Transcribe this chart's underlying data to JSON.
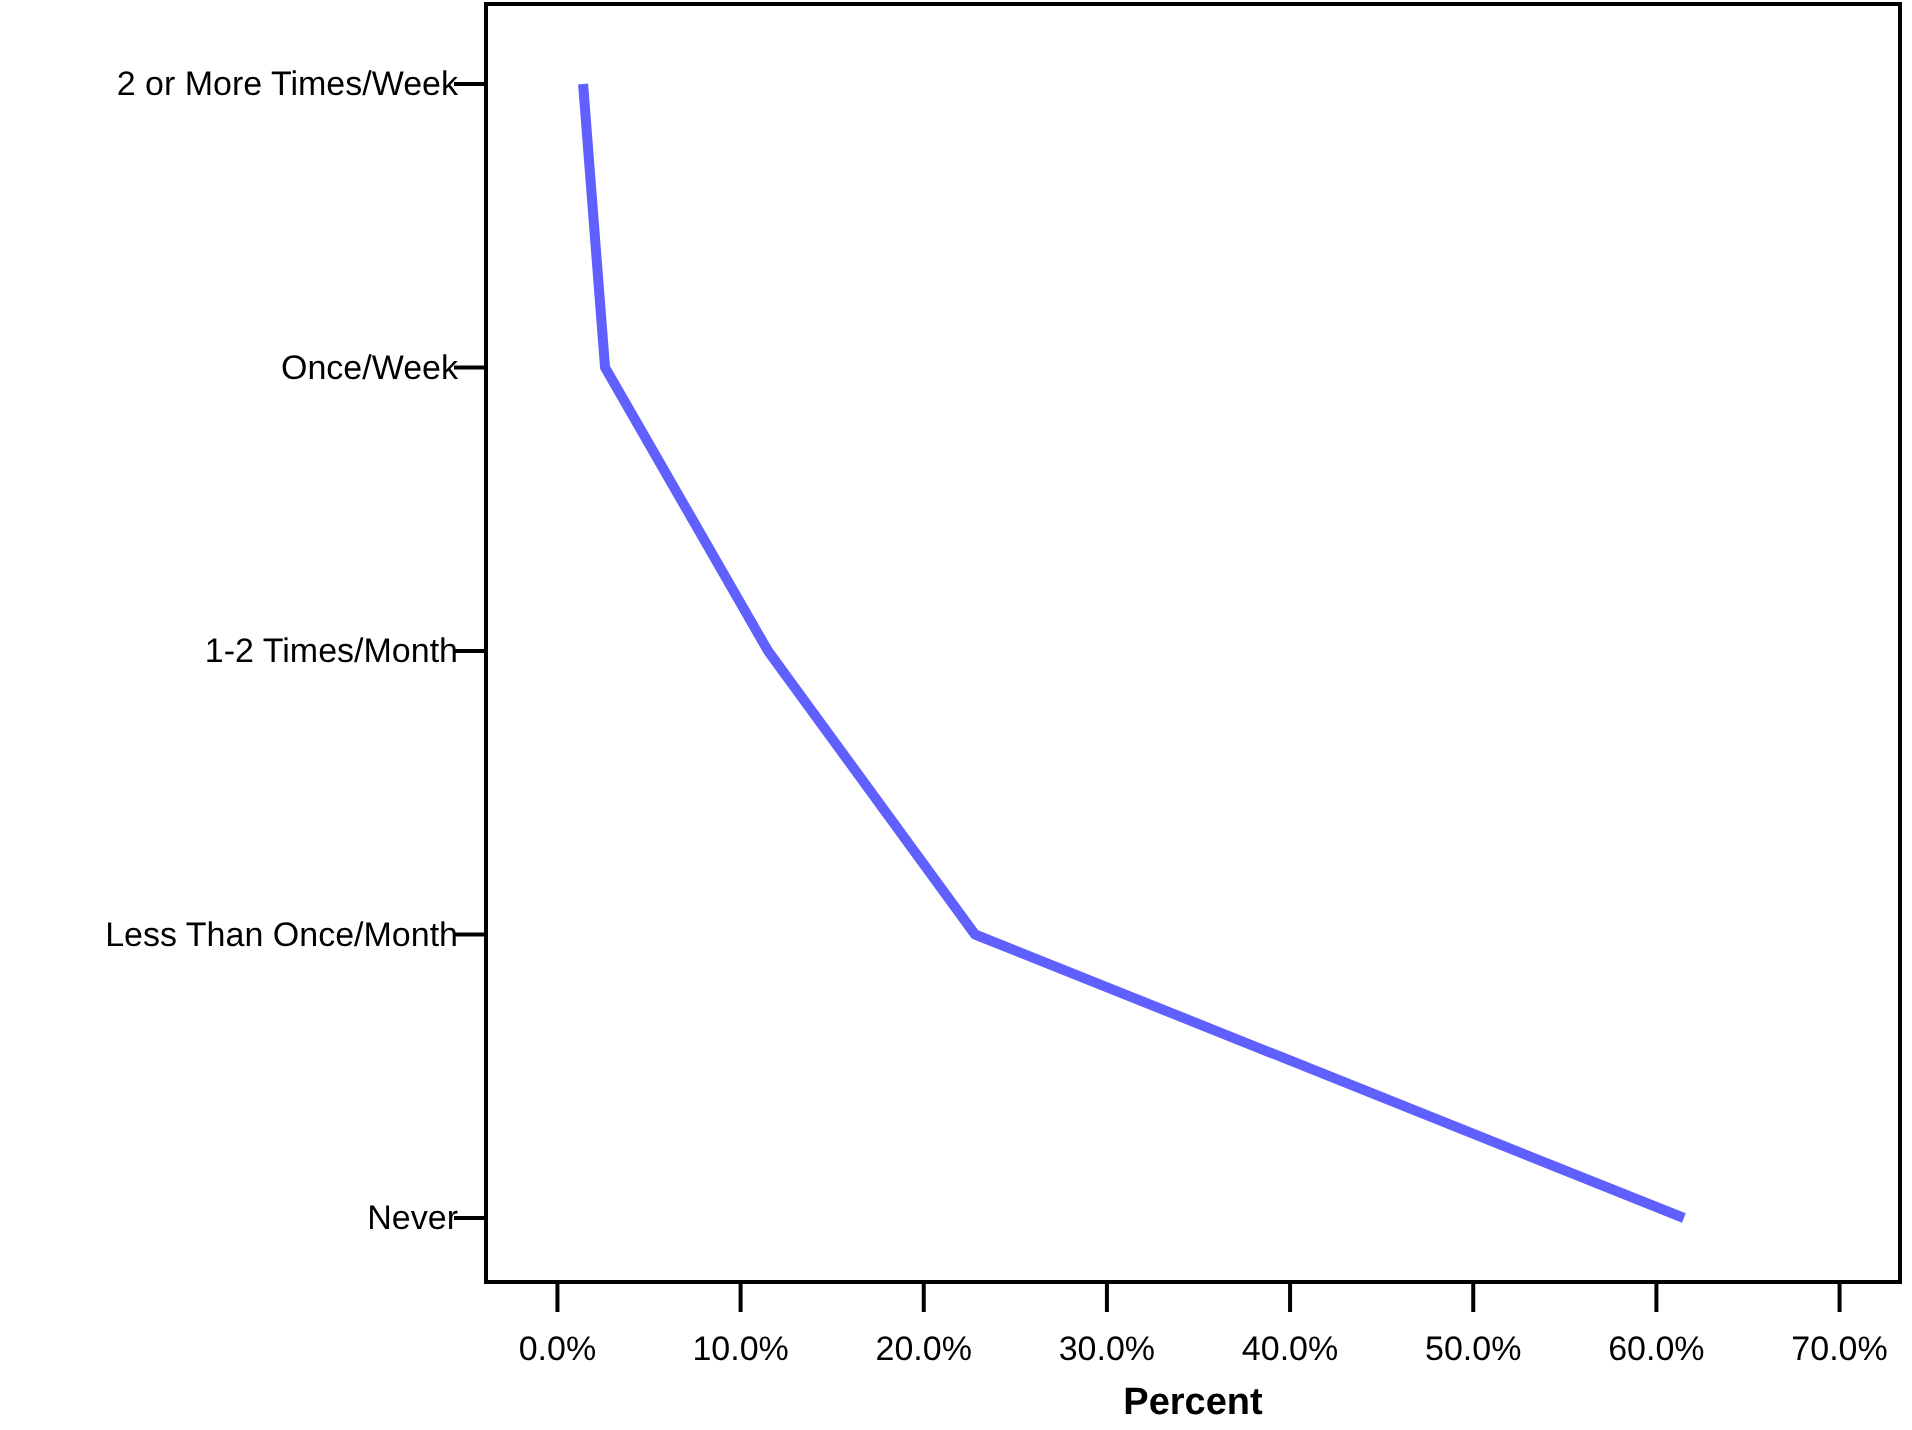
{
  "chart_data": {
    "type": "line",
    "orientation": "horizontal",
    "xlabel": "Percent",
    "categories": [
      "2 or More Times/Week",
      "Once/Week",
      "1-2 Times/Month",
      "Less Than Once/Month",
      "Never"
    ],
    "series": [
      {
        "color": "#6060ff",
        "values": [
          1.4,
          2.6,
          11.5,
          22.8,
          61.5
        ]
      }
    ],
    "xlim": [
      -3.9,
      73.3
    ],
    "xticks": [
      {
        "value": 0,
        "label": "0.0%"
      },
      {
        "value": 10,
        "label": "10.0%"
      },
      {
        "value": 20,
        "label": "20.0%"
      },
      {
        "value": 30,
        "label": "30.0%"
      },
      {
        "value": 40,
        "label": "40.0%"
      },
      {
        "value": 50,
        "label": "50.0%"
      },
      {
        "value": 60,
        "label": "60.0%"
      },
      {
        "value": 70,
        "label": "70.0%"
      }
    ],
    "marker": "none",
    "line_style": "solid",
    "grid": false
  }
}
